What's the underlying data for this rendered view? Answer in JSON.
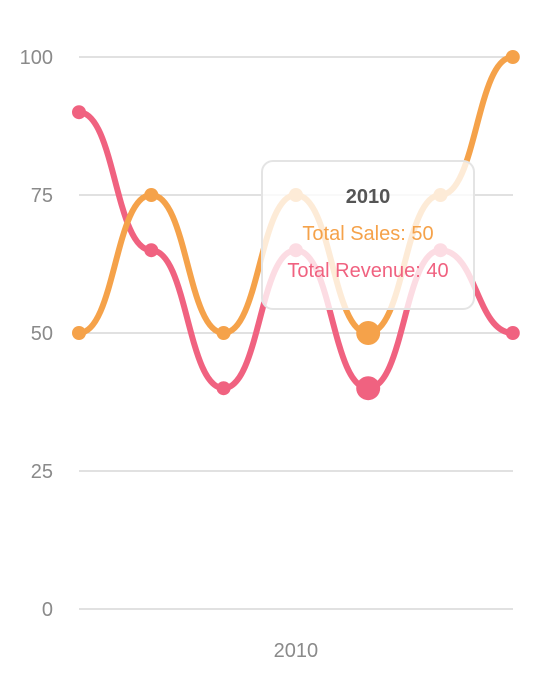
{
  "chart_data": {
    "type": "line",
    "categories": [
      "",
      "",
      "",
      "2010",
      "",
      "",
      ""
    ],
    "x_tick_labels": [
      "2010"
    ],
    "y_ticks": [
      "0",
      "25",
      "50",
      "75",
      "100"
    ],
    "ylim": [
      0,
      100
    ],
    "grid": true,
    "series": [
      {
        "name": "Total Revenue",
        "color": "#f06280",
        "values": [
          90,
          65,
          40,
          65,
          40,
          65,
          50
        ]
      },
      {
        "name": "Total Sales",
        "color": "#f5a24a",
        "values": [
          50,
          75,
          50,
          75,
          50,
          75,
          100
        ]
      }
    ],
    "highlighted_index": 4
  },
  "tooltip": {
    "title": "2010",
    "sales_text": "Total Sales: 50",
    "revenue_text": "Total Revenue: 40"
  },
  "colors": {
    "sales": "#f5a24a",
    "revenue": "#f06280"
  }
}
